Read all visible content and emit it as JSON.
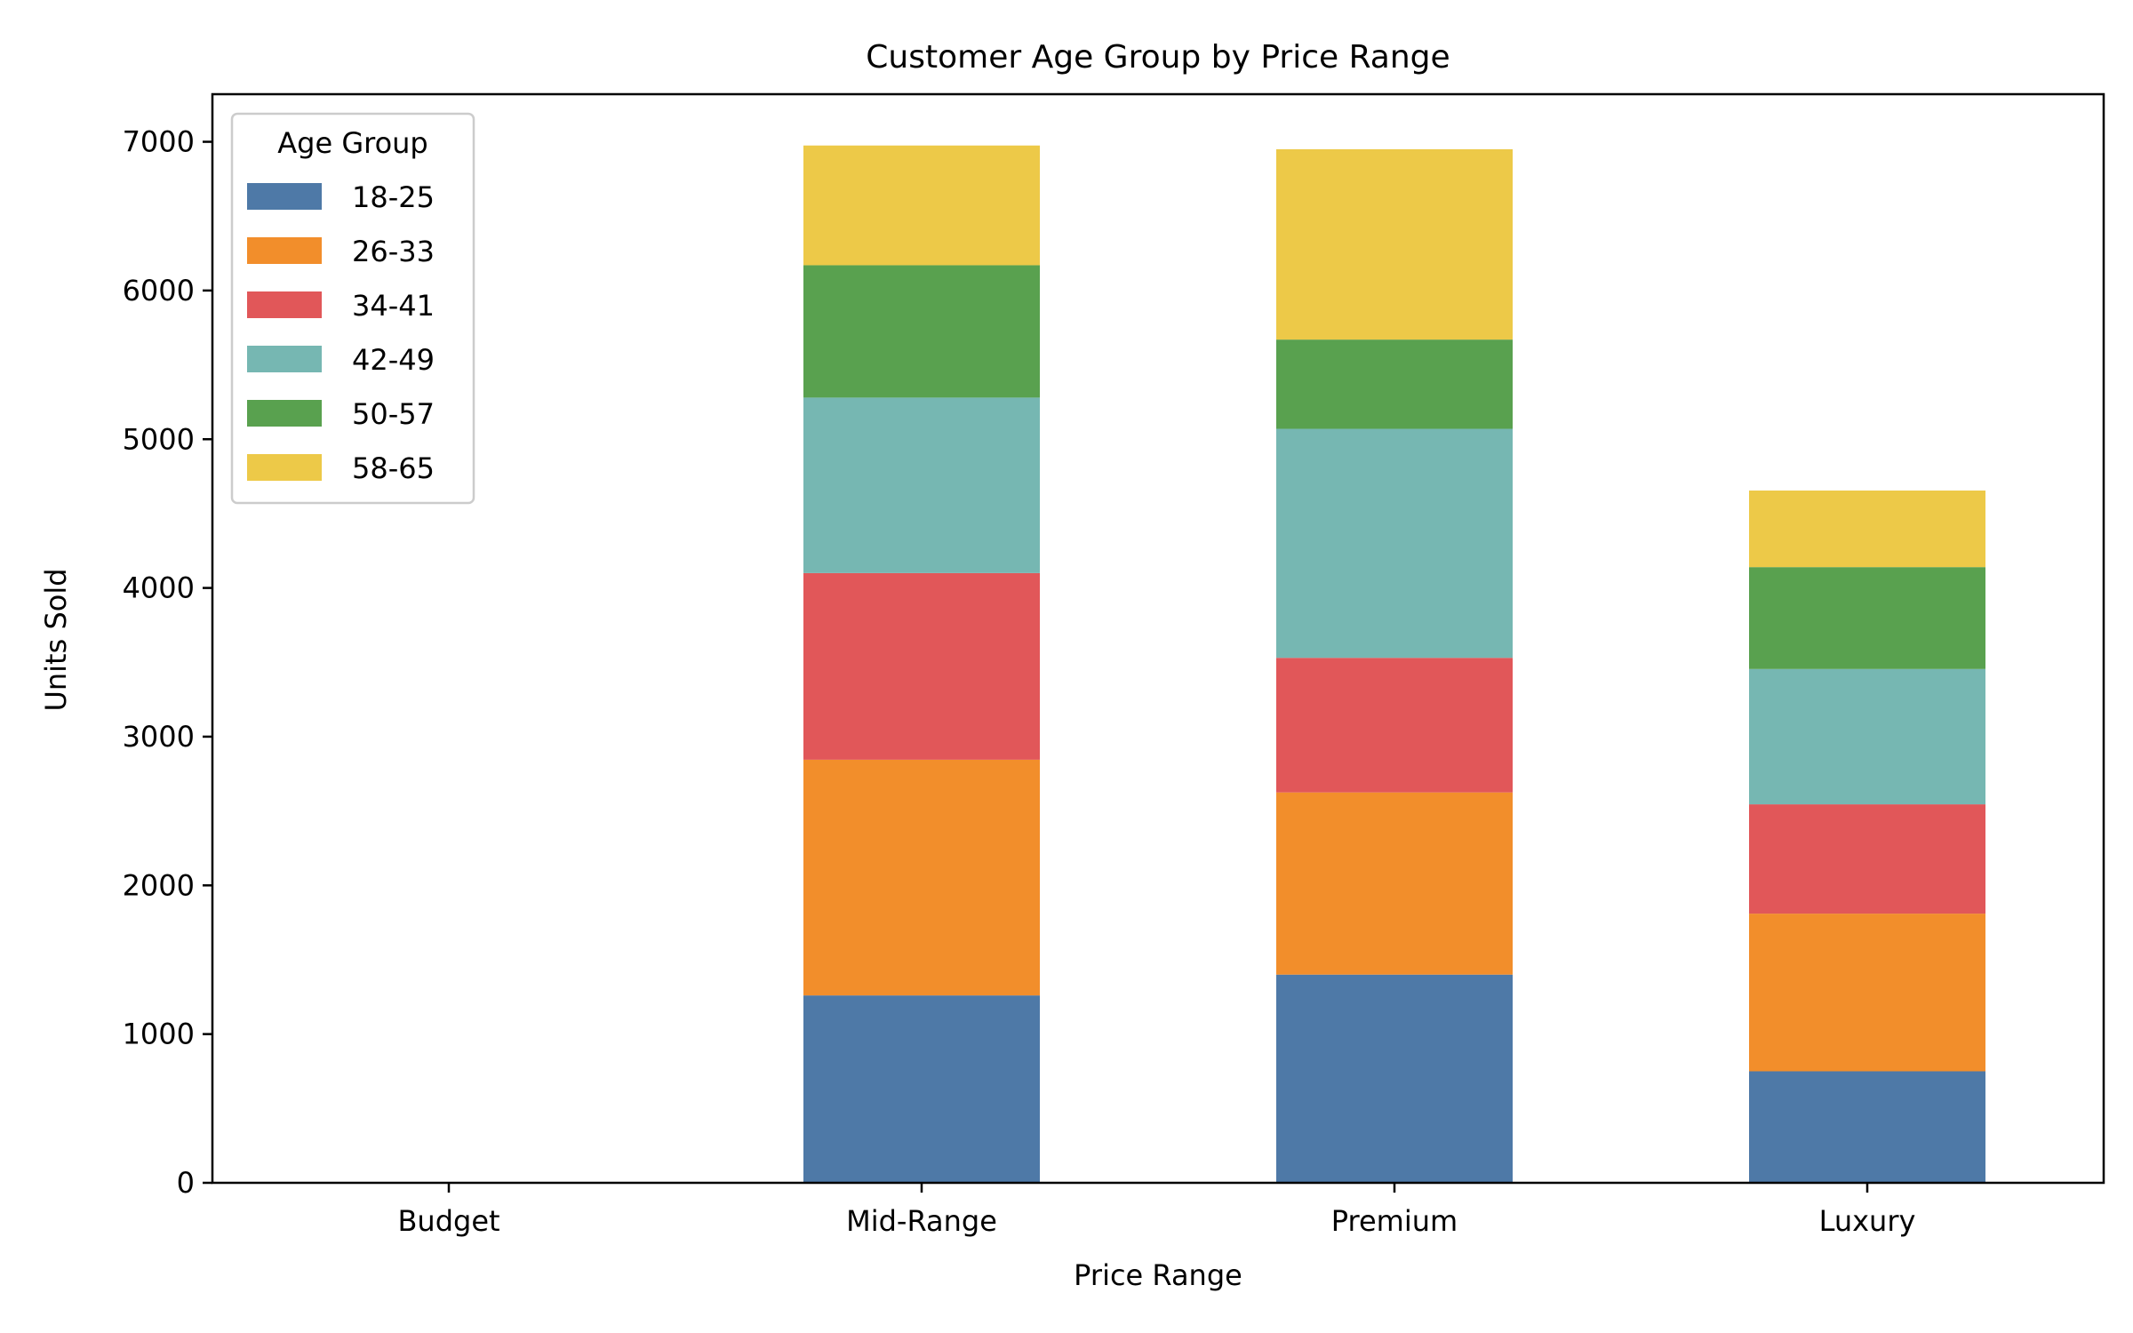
{
  "chart_data": {
    "type": "bar",
    "stacked": true,
    "title": "Customer Age Group by Price Range",
    "xlabel": "Price Range",
    "ylabel": "Units Sold",
    "categories": [
      "Budget",
      "Mid-Range",
      "Premium",
      "Luxury"
    ],
    "ylim": [
      0,
      7320
    ],
    "yticks": [
      0,
      1000,
      2000,
      3000,
      4000,
      5000,
      6000,
      7000
    ],
    "grid": false,
    "legend": {
      "title": "Age Group",
      "placement": "top-left"
    },
    "series": [
      {
        "name": "18-25",
        "color": "#4e79a7",
        "values": [
          0,
          1260,
          1400,
          750
        ]
      },
      {
        "name": "26-33",
        "color": "#f28e2b",
        "values": [
          0,
          1585,
          1225,
          1060
        ]
      },
      {
        "name": "34-41",
        "color": "#e15759",
        "values": [
          0,
          1255,
          905,
          735
        ]
      },
      {
        "name": "42-49",
        "color": "#76b7b2",
        "values": [
          0,
          1180,
          1540,
          910
        ]
      },
      {
        "name": "50-57",
        "color": "#59a14f",
        "values": [
          0,
          890,
          600,
          685
        ]
      },
      {
        "name": "58-65",
        "color": "#edc948",
        "values": [
          0,
          805,
          1280,
          515
        ]
      }
    ]
  }
}
